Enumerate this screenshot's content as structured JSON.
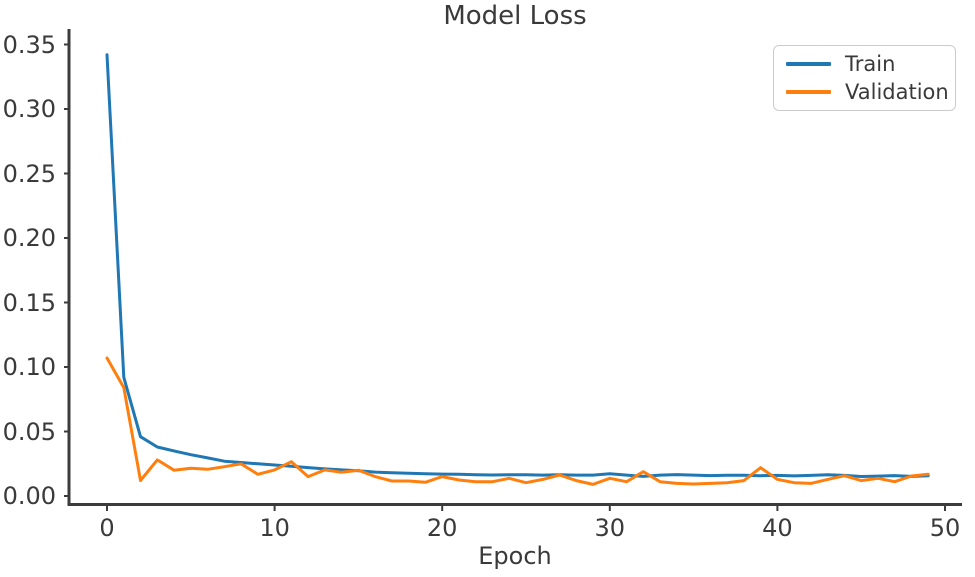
{
  "figure": {
    "background": "#ffffff",
    "text_color": "#3a3a3a",
    "spine_color": "#3c3c3c"
  },
  "chart_data": {
    "type": "line",
    "title": "Model Loss",
    "xlabel": "Epoch",
    "ylabel": "",
    "grid": false,
    "legend_position": "upper right",
    "xlim": [
      -2.3,
      51.1
    ],
    "ylim": [
      -0.0066,
      0.3625
    ],
    "xticks": [
      0,
      10,
      20,
      30,
      40,
      50
    ],
    "ytick_labels": [
      "0.00",
      "0.05",
      "0.10",
      "0.15",
      "0.20",
      "0.25",
      "0.30",
      "0.35"
    ],
    "x": [
      0,
      1,
      2,
      3,
      4,
      5,
      6,
      7,
      8,
      9,
      10,
      11,
      12,
      13,
      14,
      15,
      16,
      17,
      18,
      19,
      20,
      21,
      22,
      23,
      24,
      25,
      26,
      27,
      28,
      29,
      30,
      31,
      32,
      33,
      34,
      35,
      36,
      37,
      38,
      39,
      40,
      41,
      42,
      43,
      44,
      45,
      46,
      47,
      48,
      49
    ],
    "series": [
      {
        "name": "Train",
        "color": "#1f77b4",
        "values": [
          0.342,
          0.092,
          0.046,
          0.038,
          0.035,
          0.032,
          0.0295,
          0.027,
          0.026,
          0.025,
          0.024,
          0.023,
          0.022,
          0.021,
          0.0202,
          0.0195,
          0.0185,
          0.018,
          0.0176,
          0.0172,
          0.017,
          0.0168,
          0.0165,
          0.0163,
          0.0165,
          0.0164,
          0.0162,
          0.0165,
          0.0162,
          0.0162,
          0.0172,
          0.0162,
          0.0152,
          0.0162,
          0.0166,
          0.0162,
          0.0158,
          0.0161,
          0.0161,
          0.0157,
          0.016,
          0.0156,
          0.016,
          0.0164,
          0.016,
          0.0151,
          0.0154,
          0.0158,
          0.0152,
          0.0157
        ]
      },
      {
        "name": "Validation",
        "color": "#ff7f0e",
        "values": [
          0.107,
          0.084,
          0.012,
          0.028,
          0.02,
          0.0215,
          0.0207,
          0.0227,
          0.025,
          0.0168,
          0.0202,
          0.0266,
          0.015,
          0.0202,
          0.0184,
          0.02,
          0.015,
          0.0116,
          0.0116,
          0.0106,
          0.015,
          0.0124,
          0.0111,
          0.0111,
          0.0137,
          0.0103,
          0.0129,
          0.0163,
          0.0119,
          0.009,
          0.0137,
          0.0111,
          0.0188,
          0.0111,
          0.0098,
          0.0093,
          0.0098,
          0.0103,
          0.0119,
          0.0219,
          0.0129,
          0.0103,
          0.0098,
          0.0129,
          0.0157,
          0.0119,
          0.0137,
          0.0111,
          0.0155,
          0.0168
        ]
      }
    ]
  }
}
